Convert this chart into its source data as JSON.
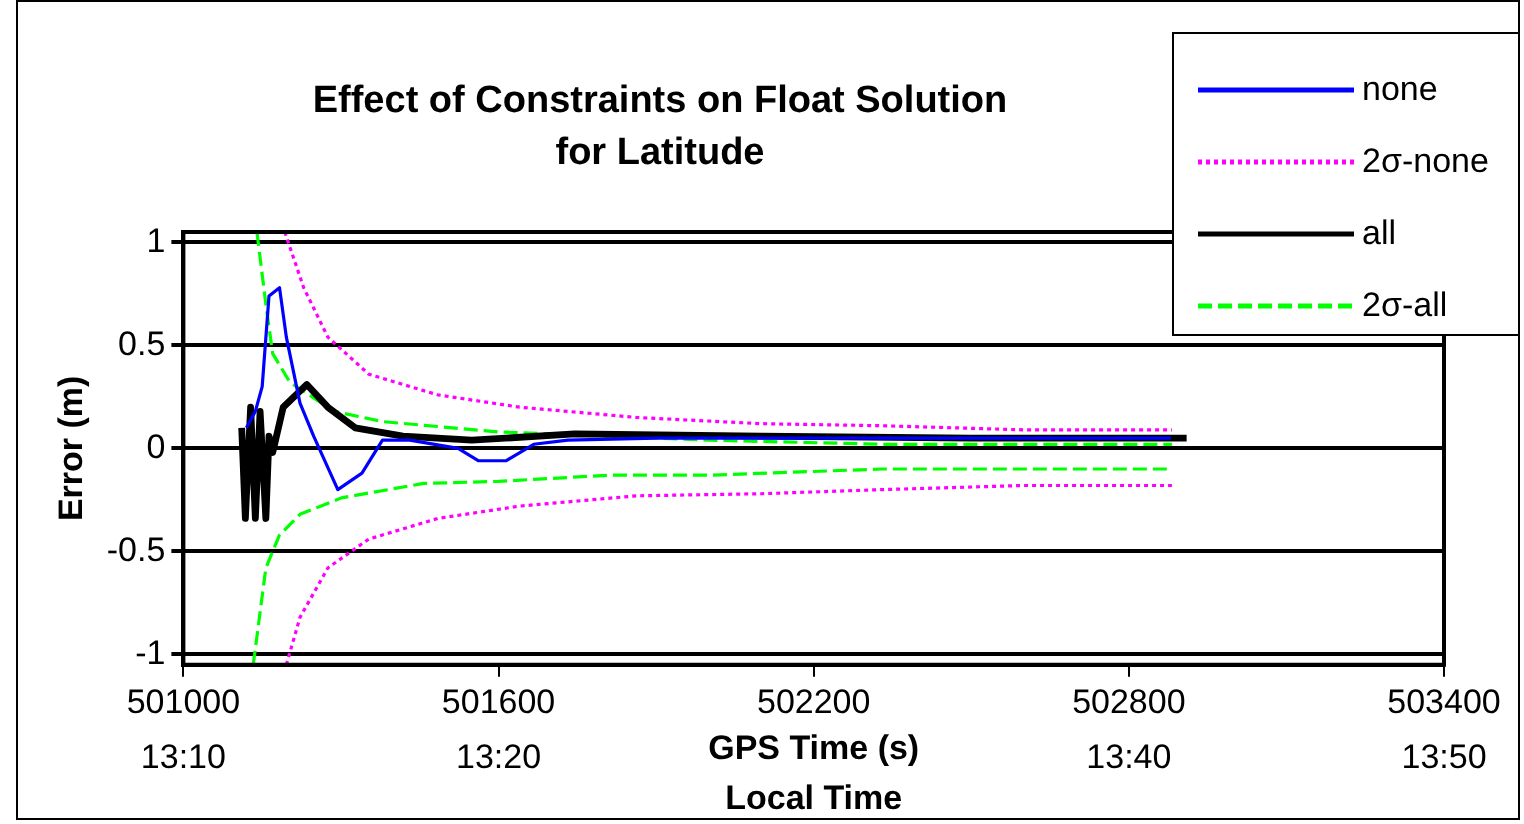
{
  "chart_data": {
    "type": "line",
    "title": "Effect of Constraints on Float Solution for Latitude",
    "xlabel": "GPS Time (s)",
    "x2label": "Local Time",
    "ylabel": "Error (m)",
    "xlim": [
      501000,
      503400
    ],
    "xticks": [
      501000,
      501600,
      502200,
      502800,
      503400
    ],
    "x2lim": [
      13.16667,
      13.83333
    ],
    "x2ticks": [
      {
        "value": 13.16667,
        "label": "13:10"
      },
      {
        "value": 13.33333,
        "label": "13:20"
      },
      {
        "value": 13.66667,
        "label": "13:40"
      },
      {
        "value": 13.83333,
        "label": "13:50"
      }
    ],
    "ylim": [
      -1.05,
      1.05
    ],
    "yticks": [
      -1,
      -0.5,
      0,
      0.5,
      1
    ],
    "grid": "y",
    "legend": "top right",
    "series": [
      {
        "name": "none",
        "color": "#0000ff",
        "line_style": "solid",
        "x": [
          501120,
          501137,
          501150,
          501163,
          501183,
          501196,
          501222,
          501248,
          501294,
          501340,
          501379,
          501431,
          501523,
          501562,
          501614,
          501667,
          501732,
          501900,
          502300,
          502880
        ],
        "values": [
          0.1,
          0.18,
          0.3,
          0.74,
          0.78,
          0.54,
          0.22,
          0.06,
          -0.2,
          -0.12,
          0.04,
          0.04,
          0.0,
          -0.06,
          -0.06,
          0.02,
          0.04,
          0.05,
          0.05,
          0.05
        ]
      },
      {
        "name": "2σ-none",
        "color": "#ff00ff",
        "line_style": "dotted",
        "x": [
          501193,
          501229,
          501275,
          501353,
          501484,
          501640,
          501863,
          502100,
          502330,
          502600,
          502882
        ],
        "values": [
          1.05,
          0.78,
          0.54,
          0.36,
          0.26,
          0.2,
          0.15,
          0.12,
          0.11,
          0.09,
          0.09
        ]
      },
      {
        "name": "all",
        "color": "#000000",
        "line_style": "solid",
        "x": [
          501111,
          501118,
          501128,
          501137,
          501146,
          501157,
          501163,
          501170,
          501190,
          501235,
          501275,
          501327,
          501418,
          501549,
          501745,
          502100,
          502500,
          502910
        ],
        "values": [
          0.1,
          -0.34,
          0.2,
          -0.34,
          0.18,
          -0.34,
          0.06,
          -0.02,
          0.2,
          0.31,
          0.2,
          0.1,
          0.06,
          0.04,
          0.07,
          0.06,
          0.05,
          0.05
        ]
      },
      {
        "name": "2σ-all",
        "color": "#00ff00",
        "line_style": "dashed",
        "x": [
          501140,
          501157,
          501170,
          501203,
          501287,
          501379,
          501600,
          501810,
          502000,
          502330,
          502882
        ],
        "values": [
          1.05,
          0.7,
          0.46,
          0.32,
          0.18,
          0.13,
          0.08,
          0.06,
          0.04,
          0.02,
          0.02
        ]
      },
      {
        "color": "#00ff00",
        "line_style": "dashed",
        "x": [
          501133,
          501157,
          501183,
          501222,
          501301,
          501457,
          501600,
          501810,
          502000,
          502330,
          502882
        ],
        "values": [
          -1.05,
          -0.58,
          -0.42,
          -0.32,
          -0.24,
          -0.17,
          -0.16,
          -0.13,
          -0.13,
          -0.1,
          -0.1
        ]
      },
      {
        "color": "#ff00ff",
        "line_style": "dotted",
        "x": [
          501196,
          501222,
          501275,
          501353,
          501484,
          501640,
          501863,
          502100,
          502330,
          502600,
          502882
        ],
        "values": [
          -1.05,
          -0.82,
          -0.58,
          -0.44,
          -0.34,
          -0.28,
          -0.23,
          -0.22,
          -0.2,
          -0.18,
          -0.18
        ]
      }
    ]
  }
}
